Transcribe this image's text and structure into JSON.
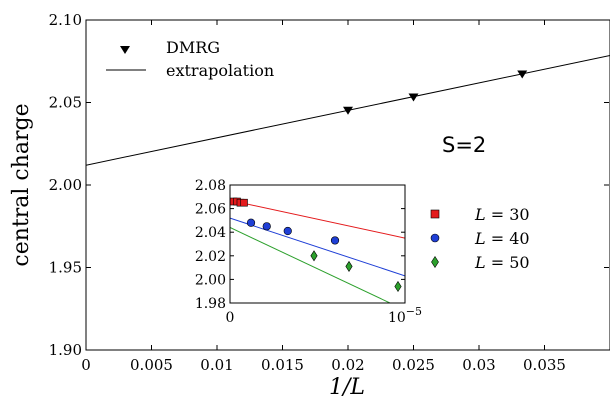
{
  "chart_data": [
    {
      "type": "line",
      "ylabel": "central charge",
      "xlabel": "1/L",
      "xlim": [
        0,
        0.04
      ],
      "ylim": [
        1.9,
        2.1
      ],
      "x_ticks": [
        "0",
        "0.005",
        "0.01",
        "0.015",
        "0.02",
        "0.025",
        "0.03",
        "0.035"
      ],
      "x_tick_values": [
        0,
        0.005,
        0.01,
        0.015,
        0.02,
        0.025,
        0.03,
        0.035
      ],
      "y_ticks": [
        "1.90",
        "1.95",
        "2.00",
        "2.05",
        "2.10"
      ],
      "y_tick_values": [
        1.9,
        1.95,
        2.0,
        2.05,
        2.1
      ],
      "grid": false,
      "legend_position": "top-left",
      "annotation": "S=2",
      "series": [
        {
          "name": "DMRG",
          "marker": "triangle-down",
          "color": "#000000",
          "x": [
            0.02,
            0.025,
            0.0333
          ],
          "y": [
            2.045,
            2.053,
            2.067
          ]
        },
        {
          "name": "extrapolation",
          "style": "line",
          "color": "#000000",
          "x": [
            0,
            0.04
          ],
          "y": [
            2.012,
            2.0785
          ]
        }
      ]
    },
    {
      "type": "line",
      "xlim": [
        0,
        1e-05
      ],
      "ylim": [
        1.98,
        2.08
      ],
      "x_ticks": [
        "0",
        "10"
      ],
      "x_tick_values": [
        0,
        1e-05
      ],
      "x_exp": "−5",
      "y_ticks": [
        "1.98",
        "2.00",
        "2.02",
        "2.04",
        "2.06",
        "2.08"
      ],
      "y_tick_values": [
        1.98,
        2.0,
        2.02,
        2.04,
        2.06,
        2.08
      ],
      "legend_position": "right (outside)",
      "series": [
        {
          "name": "L = 30",
          "label_var": "L",
          "label_val": "= 30",
          "marker": "square",
          "color": "#e41a1c",
          "x": [
            2e-07,
            4e-07,
            6e-07,
            8e-07
          ],
          "y": [
            2.066,
            2.066,
            2.065,
            2.065
          ],
          "fit": {
            "x": [
              0,
              1e-05
            ],
            "y": [
              2.067,
              2.035
            ]
          }
        },
        {
          "name": "L = 40",
          "label_var": "L",
          "label_val": "= 40",
          "marker": "circle",
          "color": "#1f3fd6",
          "x": [
            1.2e-06,
            2.1e-06,
            3.3e-06,
            6e-06
          ],
          "y": [
            2.048,
            2.045,
            2.041,
            2.033
          ],
          "fit": {
            "x": [
              0,
              1e-05
            ],
            "y": [
              2.052,
              2.003
            ]
          }
        },
        {
          "name": "L = 50",
          "label_var": "L",
          "label_val": "= 50",
          "marker": "diamond",
          "color": "#2ca02c",
          "x": [
            4.8e-06,
            6.8e-06,
            9.6e-06
          ],
          "y": [
            2.02,
            2.011,
            1.994
          ],
          "fit": {
            "x": [
              0,
              1e-05
            ],
            "y": [
              2.044,
              1.974
            ]
          }
        }
      ]
    }
  ]
}
